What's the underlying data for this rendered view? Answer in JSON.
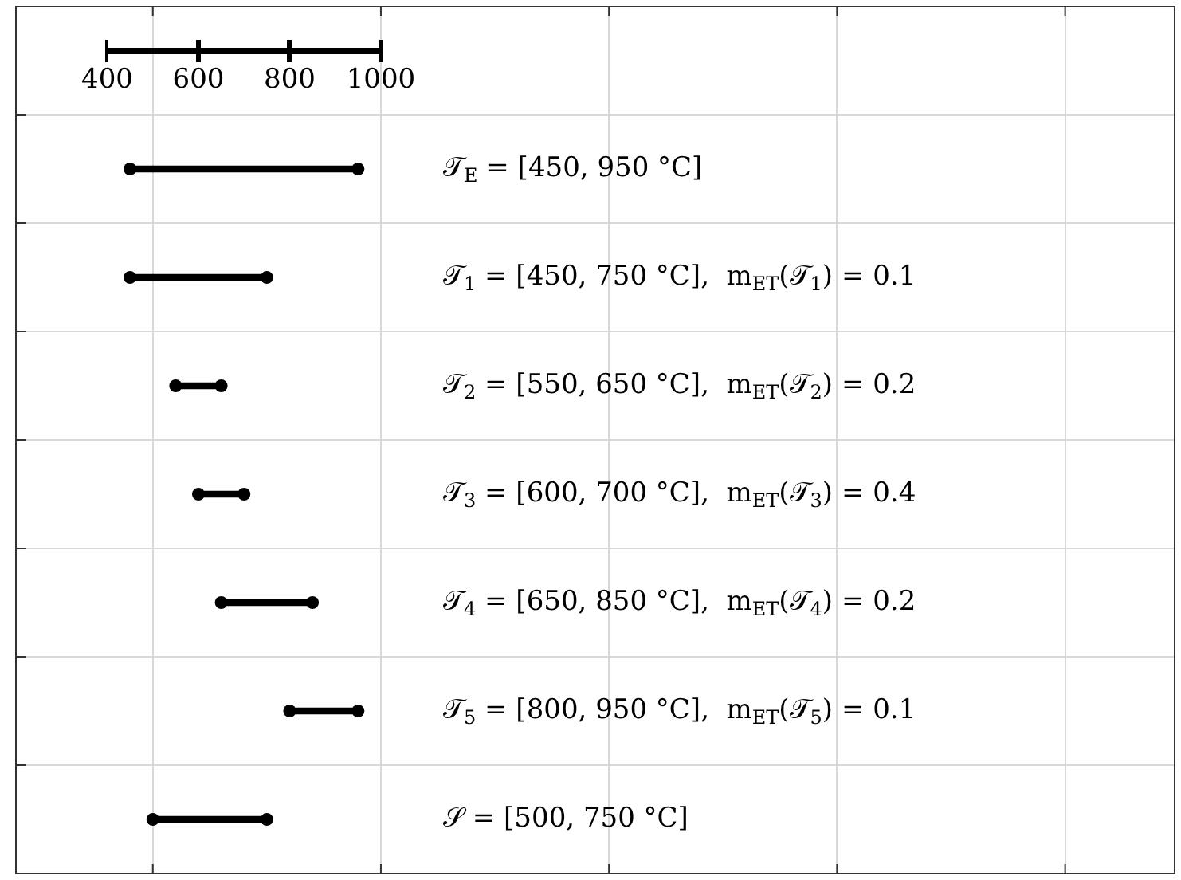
{
  "chart_data": {
    "type": "bar",
    "orientation": "horizontal",
    "categories": [
      null,
      null,
      null,
      null,
      null,
      null,
      null,
      null
    ],
    "series": [
      {
        "type": "bar",
        "color": "#000000",
        "base": [
          null,
          450,
          450,
          550,
          600,
          650,
          800,
          500
        ],
        "values": [
          null,
          500,
          300,
          100,
          100,
          200,
          150,
          250
        ]
      },
      {
        "type": "scatter",
        "color": "#000000",
        "marker": "circle",
        "values": [
          null,
          450,
          450,
          550,
          600,
          650,
          800,
          500
        ]
      },
      {
        "type": "scatter",
        "color": "#000000",
        "marker": "circle",
        "values": [
          null,
          950,
          750,
          650,
          700,
          850,
          950,
          750
        ]
      }
    ],
    "annotations": [
      "𝒯$_{E}$ = [450, 950 °C]",
      "𝒯$_{1}$ = [450, 750 °C],  m$_{ET}$(𝒯$_{1}$) = 0.1",
      "𝒯$_{2}$ = [550, 650 °C],  m$_{ET}$(𝒯$_{2}$) = 0.2",
      "𝒯$_{3}$ = [600, 700 °C],  m$_{ET}$(𝒯$_{3}$) = 0.4",
      "𝒯$_{4}$ = [650, 850 °C],  m$_{ET}$(𝒯$_{4}$) = 0.2",
      "𝒯$_{5}$ = [800, 950 °C],  m$_{ET}$(𝒯$_{5}$) = 0.1",
      "𝒮 = [500, 750 °C]"
    ],
    "xlim": [
      200,
      2740
    ],
    "xticks": [
      400,
      {
        "value": 500,
        "label": null
      },
      600,
      800,
      1000,
      {
        "value": 1000,
        "label": null
      },
      {
        "value": 1500,
        "label": null
      },
      {
        "value": 2000,
        "label": null
      },
      {
        "value": 2500,
        "label": null
      }
    ],
    "grid": true,
    "legend": false
  }
}
